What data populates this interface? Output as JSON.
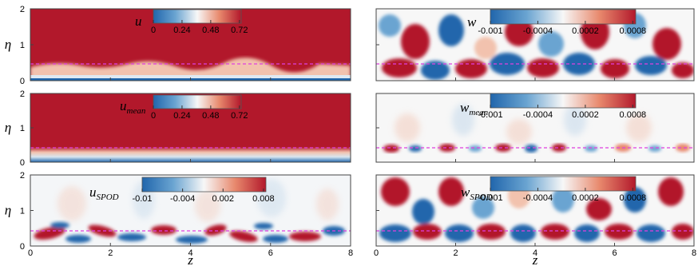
{
  "figure": {
    "x_axis_label": "z",
    "y_axis_label": "η",
    "x_ticks": [
      "0",
      "2",
      "4",
      "6",
      "8"
    ],
    "y_ticks": [
      "0",
      "1",
      "2"
    ],
    "dashed_line_color": "#e040e0",
    "colormap": [
      "#2166ac",
      "#6aa4d1",
      "#f7f7f7",
      "#e8896d",
      "#b2182b"
    ]
  },
  "panels": [
    {
      "field": "u",
      "subscript": "",
      "ticks": [
        "0",
        "0.24",
        "0.48",
        "0.72"
      ]
    },
    {
      "field": "w",
      "subscript": "",
      "ticks": [
        "-0.001",
        "-0.0004",
        "0.0002",
        "0.0008"
      ]
    },
    {
      "field": "u",
      "subscript": "mean",
      "ticks": [
        "0",
        "0.24",
        "0.48",
        "0.72"
      ]
    },
    {
      "field": "w",
      "subscript": "mean",
      "ticks": [
        "-0.001",
        "-0.0004",
        "0.0002",
        "0.0008"
      ]
    },
    {
      "field": "u",
      "subscript": "SPOD",
      "ticks": [
        "-0.01",
        "-0.004",
        "0.002",
        "0.008"
      ]
    },
    {
      "field": "w",
      "subscript": "SPOD",
      "ticks": [
        "-0.001",
        "-0.0004",
        "0.0002",
        "0.0008"
      ]
    }
  ]
}
